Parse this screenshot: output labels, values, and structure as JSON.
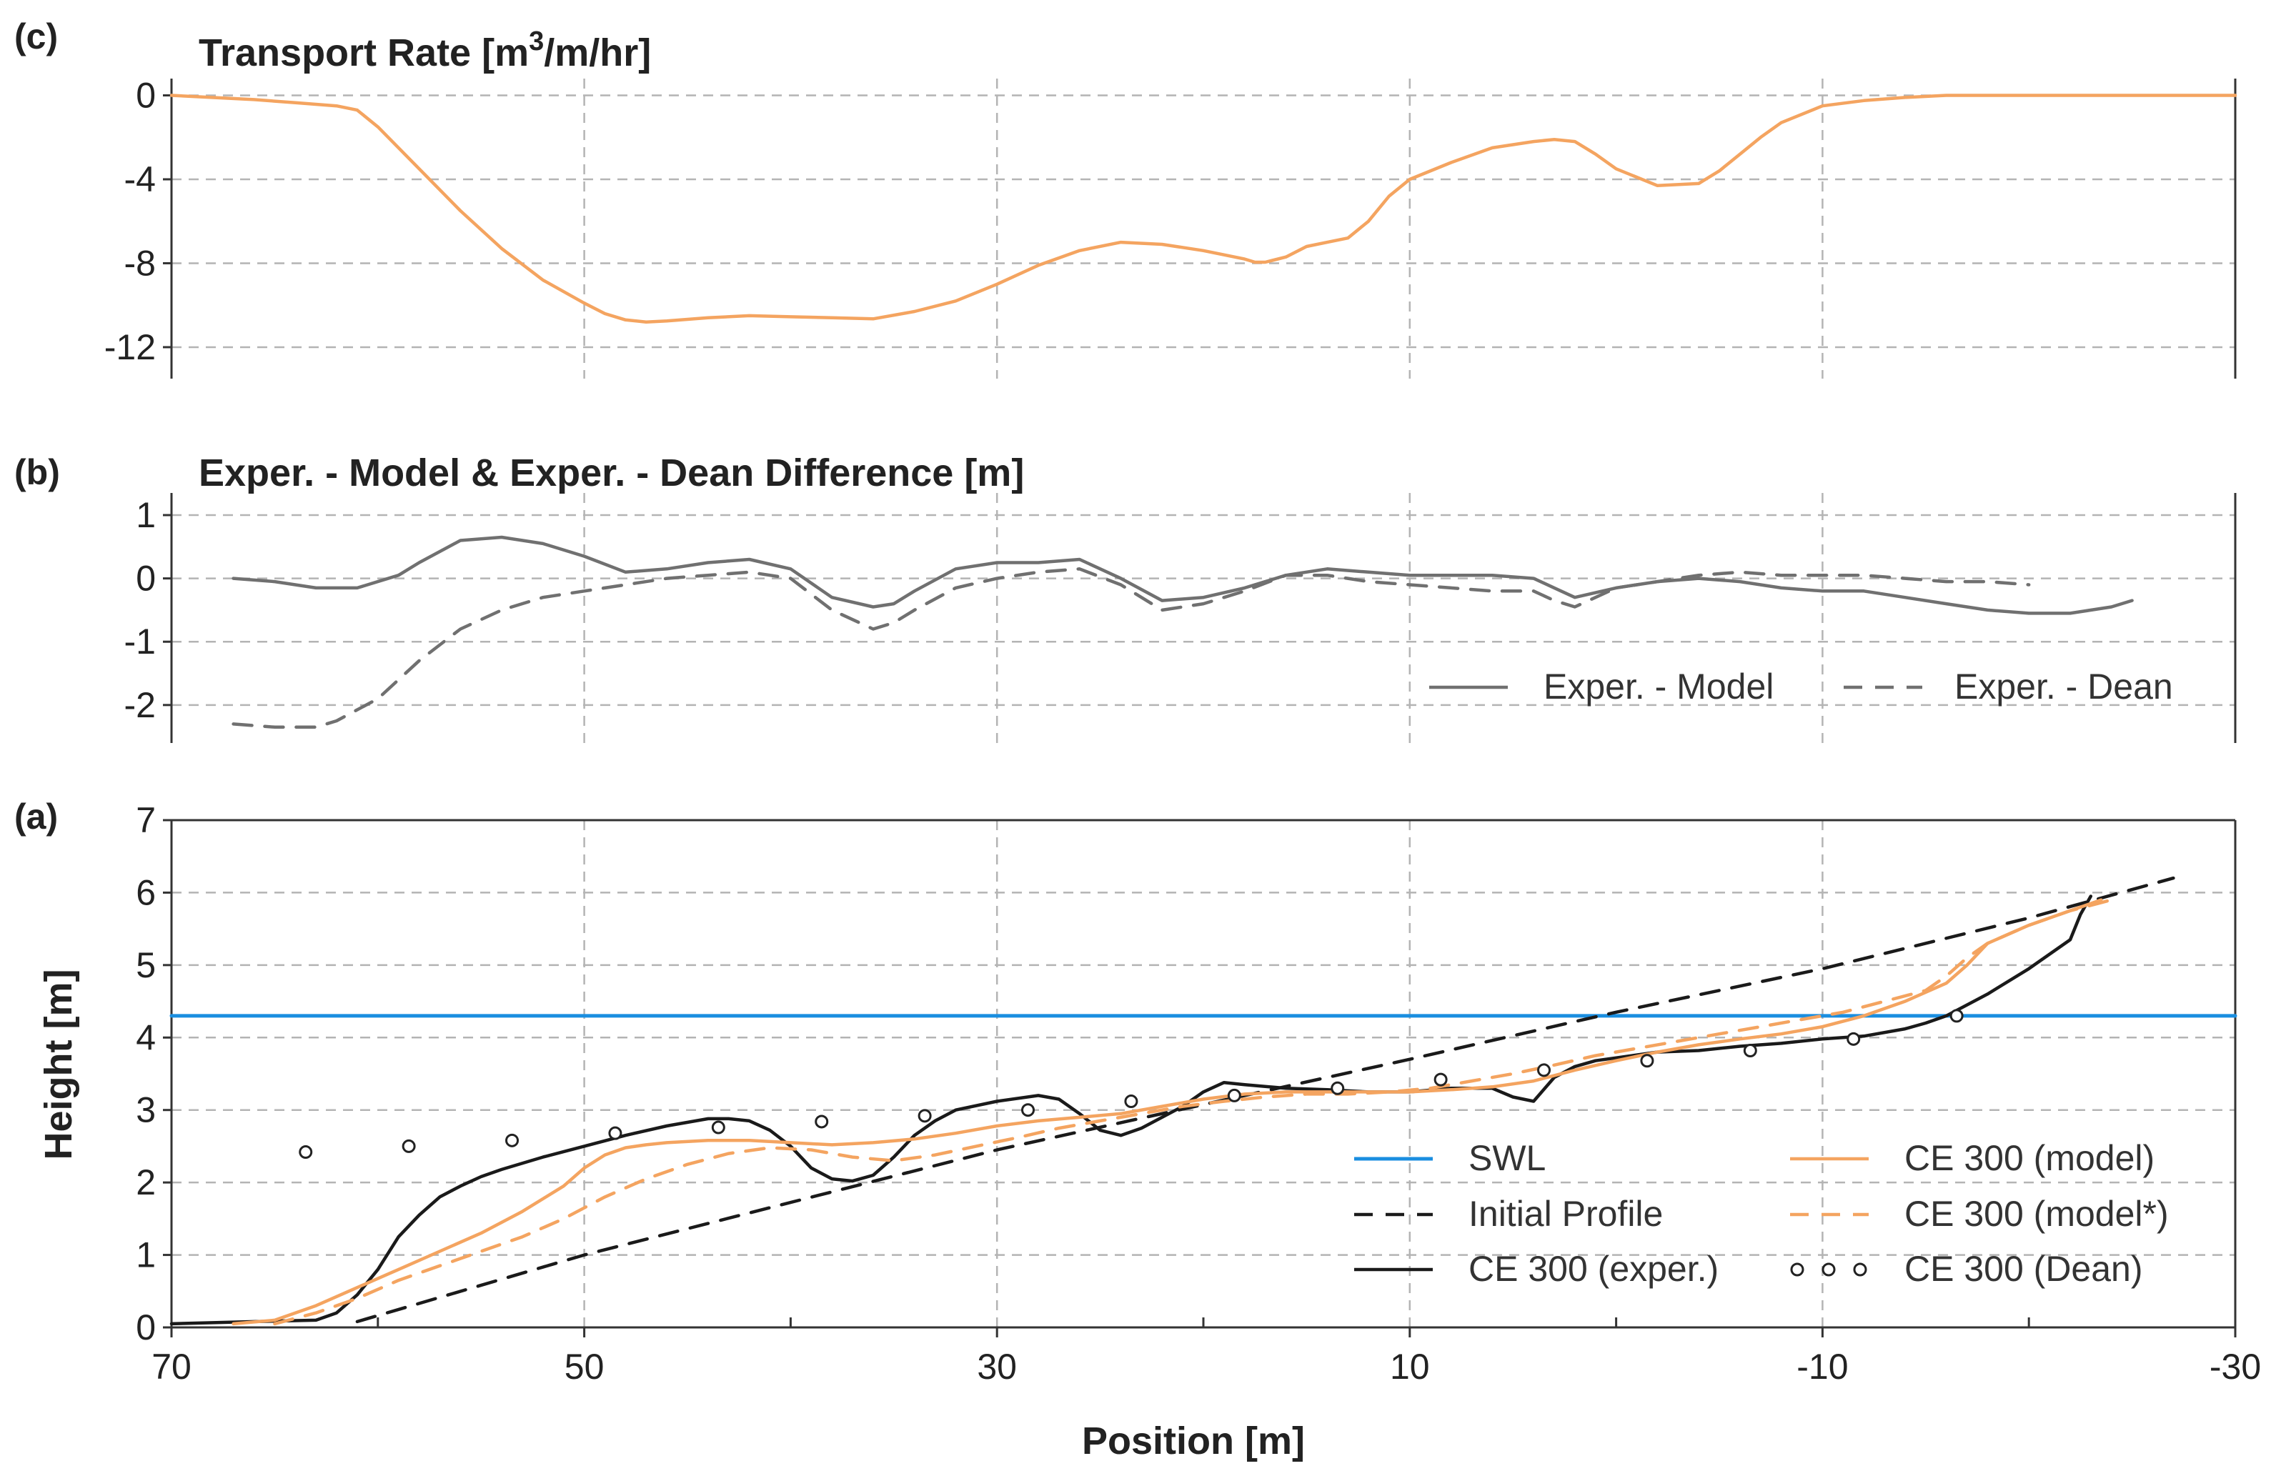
{
  "chart_data": [
    {
      "panel": "(c)",
      "type": "line",
      "title": "Transport Rate [m3/m/hr]",
      "title_main": "Transport Rate [m",
      "title_sup": "3",
      "title_tail": "/m/hr]",
      "xlim": [
        70,
        -30
      ],
      "ylim": [
        -13.5,
        0.8
      ],
      "yticks": [
        0,
        -4,
        -8,
        -12
      ],
      "ytick_labels": [
        "0",
        "-4",
        "-8",
        "-12"
      ],
      "xgrid": [
        50,
        30,
        10,
        -10
      ],
      "ygrid": [
        0,
        -4,
        -8,
        -12
      ],
      "series": [
        {
          "name": "Transport Rate",
          "color": "#f4a460",
          "dash": "solid",
          "x": [
            70,
            66,
            64,
            62,
            61,
            60,
            59,
            58,
            56,
            54,
            52,
            50,
            49,
            48,
            47,
            46,
            44,
            42,
            40,
            38,
            36,
            34,
            32,
            30,
            28,
            26,
            24,
            22,
            20,
            18,
            17.5,
            17,
            16,
            15,
            14,
            13,
            12,
            11,
            10,
            8,
            6,
            4,
            3,
            2,
            1,
            0,
            -2,
            -4,
            -5,
            -6,
            -7,
            -8,
            -10,
            -12,
            -14,
            -16,
            -20,
            -25,
            -30
          ],
          "y": [
            0,
            -0.2,
            -0.35,
            -0.5,
            -0.7,
            -1.5,
            -2.5,
            -3.5,
            -5.5,
            -7.3,
            -8.8,
            -9.9,
            -10.4,
            -10.7,
            -10.8,
            -10.75,
            -10.6,
            -10.5,
            -10.55,
            -10.6,
            -10.65,
            -10.3,
            -9.8,
            -9.0,
            -8.1,
            -7.4,
            -7.0,
            -7.1,
            -7.4,
            -7.8,
            -7.95,
            -7.95,
            -7.7,
            -7.2,
            -7.0,
            -6.8,
            -6.0,
            -4.8,
            -4.0,
            -3.2,
            -2.5,
            -2.2,
            -2.1,
            -2.2,
            -2.8,
            -3.5,
            -4.3,
            -4.2,
            -3.6,
            -2.8,
            -2.0,
            -1.3,
            -0.5,
            -0.25,
            -0.1,
            0,
            0,
            0,
            0
          ]
        }
      ]
    },
    {
      "panel": "(b)",
      "type": "line",
      "title": "Exper. - Model & Exper. - Dean Difference [m]",
      "xlim": [
        70,
        -30
      ],
      "ylim": [
        -2.6,
        1.35
      ],
      "yticks": [
        1,
        0,
        -1,
        -2
      ],
      "ytick_labels": [
        "1",
        "0",
        "-1",
        "-2"
      ],
      "xgrid": [
        50,
        30,
        10,
        -10
      ],
      "ygrid": [
        1,
        0,
        -1,
        -2
      ],
      "legend": [
        "Exper. - Model",
        "Exper. - Dean"
      ],
      "legend_position": "bottom-right",
      "series": [
        {
          "name": "Exper. - Model",
          "color": "#707070",
          "dash": "solid",
          "x": [
            67,
            65,
            63,
            61,
            59,
            58,
            56,
            54,
            52,
            50,
            48,
            46,
            44,
            42,
            40,
            38,
            36,
            35,
            34,
            32,
            30,
            28,
            26,
            24,
            22,
            20,
            18,
            16,
            14,
            12,
            10,
            8,
            6,
            4,
            3,
            2,
            0,
            -2,
            -4,
            -6,
            -8,
            -10,
            -12,
            -14,
            -16,
            -18,
            -20,
            -22,
            -24,
            -25
          ],
          "y": [
            0,
            -0.05,
            -0.15,
            -0.15,
            0.05,
            0.25,
            0.6,
            0.65,
            0.55,
            0.35,
            0.1,
            0.15,
            0.25,
            0.3,
            0.15,
            -0.3,
            -0.45,
            -0.4,
            -0.2,
            0.15,
            0.25,
            0.25,
            0.3,
            0.0,
            -0.35,
            -0.3,
            -0.15,
            0.05,
            0.15,
            0.1,
            0.05,
            0.05,
            0.05,
            0.0,
            -0.15,
            -0.3,
            -0.15,
            -0.05,
            0.0,
            -0.05,
            -0.15,
            -0.2,
            -0.2,
            -0.3,
            -0.4,
            -0.5,
            -0.55,
            -0.55,
            -0.45,
            -0.35
          ]
        },
        {
          "name": "Exper. - Dean",
          "color": "#707070",
          "dash": "dashed",
          "x": [
            67,
            65,
            63,
            62,
            60,
            58,
            56,
            54,
            52,
            50,
            48,
            46,
            44,
            42,
            40,
            38,
            36,
            35,
            34,
            32,
            30,
            28,
            26,
            24,
            22,
            20,
            18,
            16,
            14,
            12,
            10,
            8,
            6,
            4,
            3,
            2,
            0,
            -2,
            -4,
            -6,
            -8,
            -10,
            -12,
            -14,
            -16,
            -18,
            -20
          ],
          "y": [
            -2.3,
            -2.35,
            -2.35,
            -2.25,
            -1.9,
            -1.3,
            -0.8,
            -0.5,
            -0.3,
            -0.2,
            -0.1,
            0.0,
            0.05,
            0.1,
            0.0,
            -0.5,
            -0.8,
            -0.7,
            -0.5,
            -0.15,
            0.0,
            0.1,
            0.15,
            -0.1,
            -0.5,
            -0.4,
            -0.2,
            0.05,
            0.05,
            -0.05,
            -0.1,
            -0.15,
            -0.2,
            -0.2,
            -0.35,
            -0.45,
            -0.15,
            -0.05,
            0.05,
            0.1,
            0.05,
            0.05,
            0.05,
            0.0,
            -0.05,
            -0.05,
            -0.1
          ]
        }
      ]
    },
    {
      "panel": "(a)",
      "type": "line",
      "title": "",
      "xlabel": "Position [m]",
      "ylabel": "Height [m]",
      "xlim": [
        70,
        -30
      ],
      "ylim": [
        0,
        7
      ],
      "xticks": [
        70,
        50,
        30,
        10,
        -10,
        -30
      ],
      "xtick_labels": [
        "70",
        "50",
        "30",
        "10",
        "-10",
        "-30"
      ],
      "xminor": [
        60,
        40,
        20,
        0,
        -20
      ],
      "yticks": [
        0,
        1,
        2,
        3,
        4,
        5,
        6,
        7
      ],
      "ytick_labels": [
        "0",
        "1",
        "2",
        "3",
        "4",
        "5",
        "6",
        "7"
      ],
      "xgrid": [
        50,
        30,
        10,
        -10
      ],
      "ygrid": [
        1,
        2,
        3,
        4,
        5,
        6
      ],
      "legend": [
        "SWL",
        "Initial Profile",
        "CE 300 (exper.)",
        "CE 300 (model)",
        "CE 300 (model*)",
        "CE 300 (Dean)"
      ],
      "legend_position": "bottom-right",
      "series": [
        {
          "name": "SWL",
          "color": "#1a8ee0",
          "dash": "solid",
          "x": [
            70,
            -30
          ],
          "y": [
            4.3,
            4.3
          ]
        },
        {
          "name": "Initial Profile",
          "color": "#1a1a1a",
          "dash": "dashed",
          "x": [
            61,
            50,
            30,
            10,
            0,
            -10,
            -20,
            -27
          ],
          "y": [
            0.08,
            1.0,
            2.45,
            3.7,
            4.35,
            4.95,
            5.65,
            6.2
          ]
        },
        {
          "name": "CE 300 (exper.)",
          "color": "#1a1a1a",
          "dash": "solid",
          "x": [
            70,
            66,
            63,
            62,
            61,
            60,
            59,
            58,
            57,
            56,
            55,
            54,
            52,
            50,
            48,
            46,
            44,
            43,
            42,
            41,
            40,
            39,
            38,
            37,
            36,
            35,
            34,
            33,
            32,
            30,
            28,
            27,
            26,
            25,
            24,
            23,
            22,
            21,
            20,
            19,
            18,
            16,
            14,
            12,
            10,
            8,
            6,
            5,
            4,
            3,
            2,
            1,
            0,
            -2,
            -4,
            -6,
            -8,
            -10,
            -12,
            -14,
            -15,
            -16,
            -18,
            -20,
            -22,
            -22.5,
            -23
          ],
          "y": [
            0.05,
            0.08,
            0.1,
            0.2,
            0.45,
            0.8,
            1.25,
            1.55,
            1.8,
            1.95,
            2.08,
            2.18,
            2.35,
            2.5,
            2.65,
            2.78,
            2.88,
            2.88,
            2.85,
            2.72,
            2.5,
            2.2,
            2.05,
            2.02,
            2.1,
            2.35,
            2.65,
            2.85,
            3.0,
            3.12,
            3.2,
            3.15,
            2.95,
            2.72,
            2.65,
            2.75,
            2.9,
            3.05,
            3.25,
            3.38,
            3.35,
            3.3,
            3.28,
            3.25,
            3.25,
            3.3,
            3.3,
            3.18,
            3.12,
            3.45,
            3.6,
            3.68,
            3.72,
            3.8,
            3.82,
            3.88,
            3.92,
            3.98,
            4.02,
            4.12,
            4.2,
            4.3,
            4.6,
            4.95,
            5.35,
            5.7,
            5.95
          ]
        },
        {
          "name": "CE 300 (model)",
          "color": "#f4a460",
          "dash": "solid",
          "x": [
            67,
            65,
            63,
            61,
            59,
            57,
            55,
            53,
            51,
            50,
            49,
            48,
            47,
            46,
            44,
            42,
            40,
            38,
            36,
            34,
            32,
            30,
            28,
            26,
            24,
            22,
            20,
            18,
            16,
            14,
            12,
            10,
            8,
            6,
            4,
            2,
            0,
            -2,
            -4,
            -6,
            -8,
            -10,
            -12,
            -14,
            -16,
            -17,
            -18,
            -20,
            -22,
            -23.5
          ],
          "y": [
            0.05,
            0.1,
            0.3,
            0.55,
            0.8,
            1.05,
            1.3,
            1.6,
            1.95,
            2.2,
            2.38,
            2.48,
            2.52,
            2.55,
            2.58,
            2.58,
            2.55,
            2.52,
            2.55,
            2.6,
            2.68,
            2.78,
            2.85,
            2.9,
            2.95,
            3.05,
            3.15,
            3.22,
            3.25,
            3.25,
            3.25,
            3.25,
            3.28,
            3.32,
            3.4,
            3.55,
            3.68,
            3.8,
            3.9,
            3.98,
            4.05,
            4.15,
            4.3,
            4.5,
            4.75,
            5.0,
            5.3,
            5.55,
            5.75,
            5.9
          ]
        },
        {
          "name": "CE 300 (model*)",
          "color": "#f4a460",
          "dash": "dashed",
          "x": [
            65,
            63,
            61,
            59,
            57,
            55,
            53,
            51,
            49,
            47,
            45,
            43,
            41,
            39,
            37,
            35,
            33,
            31,
            29,
            27,
            25,
            23,
            21,
            19,
            17,
            15,
            13,
            11,
            9,
            7,
            5,
            3,
            1,
            -1,
            -3,
            -5,
            -7,
            -9,
            -11,
            -13,
            -15,
            -16,
            -17,
            -18,
            -20,
            -22,
            -24
          ],
          "y": [
            0.05,
            0.2,
            0.4,
            0.65,
            0.85,
            1.05,
            1.25,
            1.5,
            1.8,
            2.05,
            2.25,
            2.4,
            2.48,
            2.45,
            2.35,
            2.3,
            2.38,
            2.5,
            2.62,
            2.75,
            2.85,
            2.95,
            3.05,
            3.12,
            3.18,
            3.22,
            3.22,
            3.25,
            3.3,
            3.4,
            3.5,
            3.62,
            3.75,
            3.85,
            3.95,
            4.05,
            4.15,
            4.25,
            4.35,
            4.5,
            4.65,
            4.85,
            5.1,
            5.3,
            5.55,
            5.75,
            5.9
          ]
        },
        {
          "name": "CE 300 (Dean)",
          "color": "#222222",
          "dash": "dots",
          "x": [
            63.5,
            58.5,
            53.5,
            48.5,
            43.5,
            38.5,
            33.5,
            28.5,
            23.5,
            18.5,
            13.5,
            8.5,
            3.5,
            -1.5,
            -6.5,
            -11.5,
            -16.5
          ],
          "y": [
            2.42,
            2.5,
            2.58,
            2.68,
            2.76,
            2.84,
            2.92,
            3.0,
            3.12,
            3.2,
            3.3,
            3.42,
            3.55,
            3.68,
            3.82,
            3.98,
            4.3
          ]
        }
      ]
    }
  ]
}
